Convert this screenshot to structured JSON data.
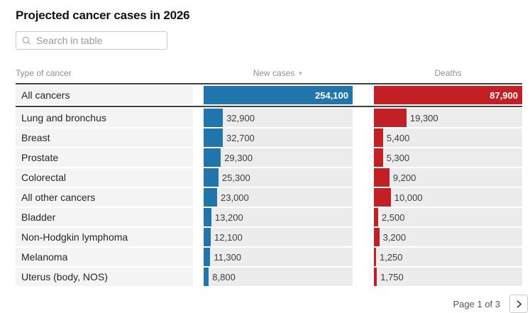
{
  "title": "Projected cancer cases in 2026",
  "search": {
    "placeholder": "Search in table"
  },
  "colors": {
    "new_cases_bar": "#2175ad",
    "deaths_bar": "#c32026",
    "bar_track": "#ececec",
    "label_cell": "#f4f4f4"
  },
  "table": {
    "columns": [
      "Type of cancer",
      "New cases",
      "Deaths"
    ],
    "sort": {
      "column": "New cases",
      "direction": "desc",
      "icon": "sort-desc-triangle"
    },
    "rows": [
      {
        "type": "All cancers",
        "new_cases": 254100,
        "new_cases_label": "254,100",
        "deaths": 87900,
        "deaths_label": "87,900",
        "total": true
      },
      {
        "type": "Lung and bronchus",
        "new_cases": 32900,
        "new_cases_label": "32,900",
        "deaths": 19300,
        "deaths_label": "19,300"
      },
      {
        "type": "Breast",
        "new_cases": 32700,
        "new_cases_label": "32,700",
        "deaths": 5400,
        "deaths_label": "5,400"
      },
      {
        "type": "Prostate",
        "new_cases": 29300,
        "new_cases_label": "29,300",
        "deaths": 5300,
        "deaths_label": "5,300"
      },
      {
        "type": "Colorectal",
        "new_cases": 25300,
        "new_cases_label": "25,300",
        "deaths": 9200,
        "deaths_label": "9,200"
      },
      {
        "type": "All other cancers",
        "new_cases": 23000,
        "new_cases_label": "23,000",
        "deaths": 10000,
        "deaths_label": "10,000"
      },
      {
        "type": "Bladder",
        "new_cases": 13200,
        "new_cases_label": "13,200",
        "deaths": 2500,
        "deaths_label": "2,500"
      },
      {
        "type": "Non-Hodgkin lymphoma",
        "new_cases": 12100,
        "new_cases_label": "12,100",
        "deaths": 3200,
        "deaths_label": "3,200"
      },
      {
        "type": "Melanoma",
        "new_cases": 11300,
        "new_cases_label": "11,300",
        "deaths": 1250,
        "deaths_label": "1,250"
      },
      {
        "type": "Uterus (body, NOS)",
        "new_cases": 8800,
        "new_cases_label": "8,800",
        "deaths": 1750,
        "deaths_label": "1,750"
      }
    ]
  },
  "pagination": {
    "label": "Page 1 of 3",
    "next_icon": "chevron-right"
  },
  "chart_data": {
    "type": "table",
    "title": "Projected cancer cases in 2026",
    "categories": [
      "All cancers",
      "Lung and bronchus",
      "Breast",
      "Prostate",
      "Colorectal",
      "All other cancers",
      "Bladder",
      "Non-Hodgkin lymphoma",
      "Melanoma",
      "Uterus (body, NOS)"
    ],
    "series": [
      {
        "name": "New cases",
        "color": "#2175ad",
        "values": [
          254100,
          32900,
          32700,
          29300,
          25300,
          23000,
          13200,
          12100,
          11300,
          8800
        ]
      },
      {
        "name": "Deaths",
        "color": "#c32026",
        "values": [
          87900,
          19300,
          5400,
          5300,
          9200,
          10000,
          2500,
          3200,
          1250,
          1750
        ]
      }
    ],
    "layout": {
      "bars_in_cells": true,
      "each_series_scaled_to_own_max": true,
      "sorted_by": "New cases descending",
      "page": "1 of 3"
    }
  }
}
